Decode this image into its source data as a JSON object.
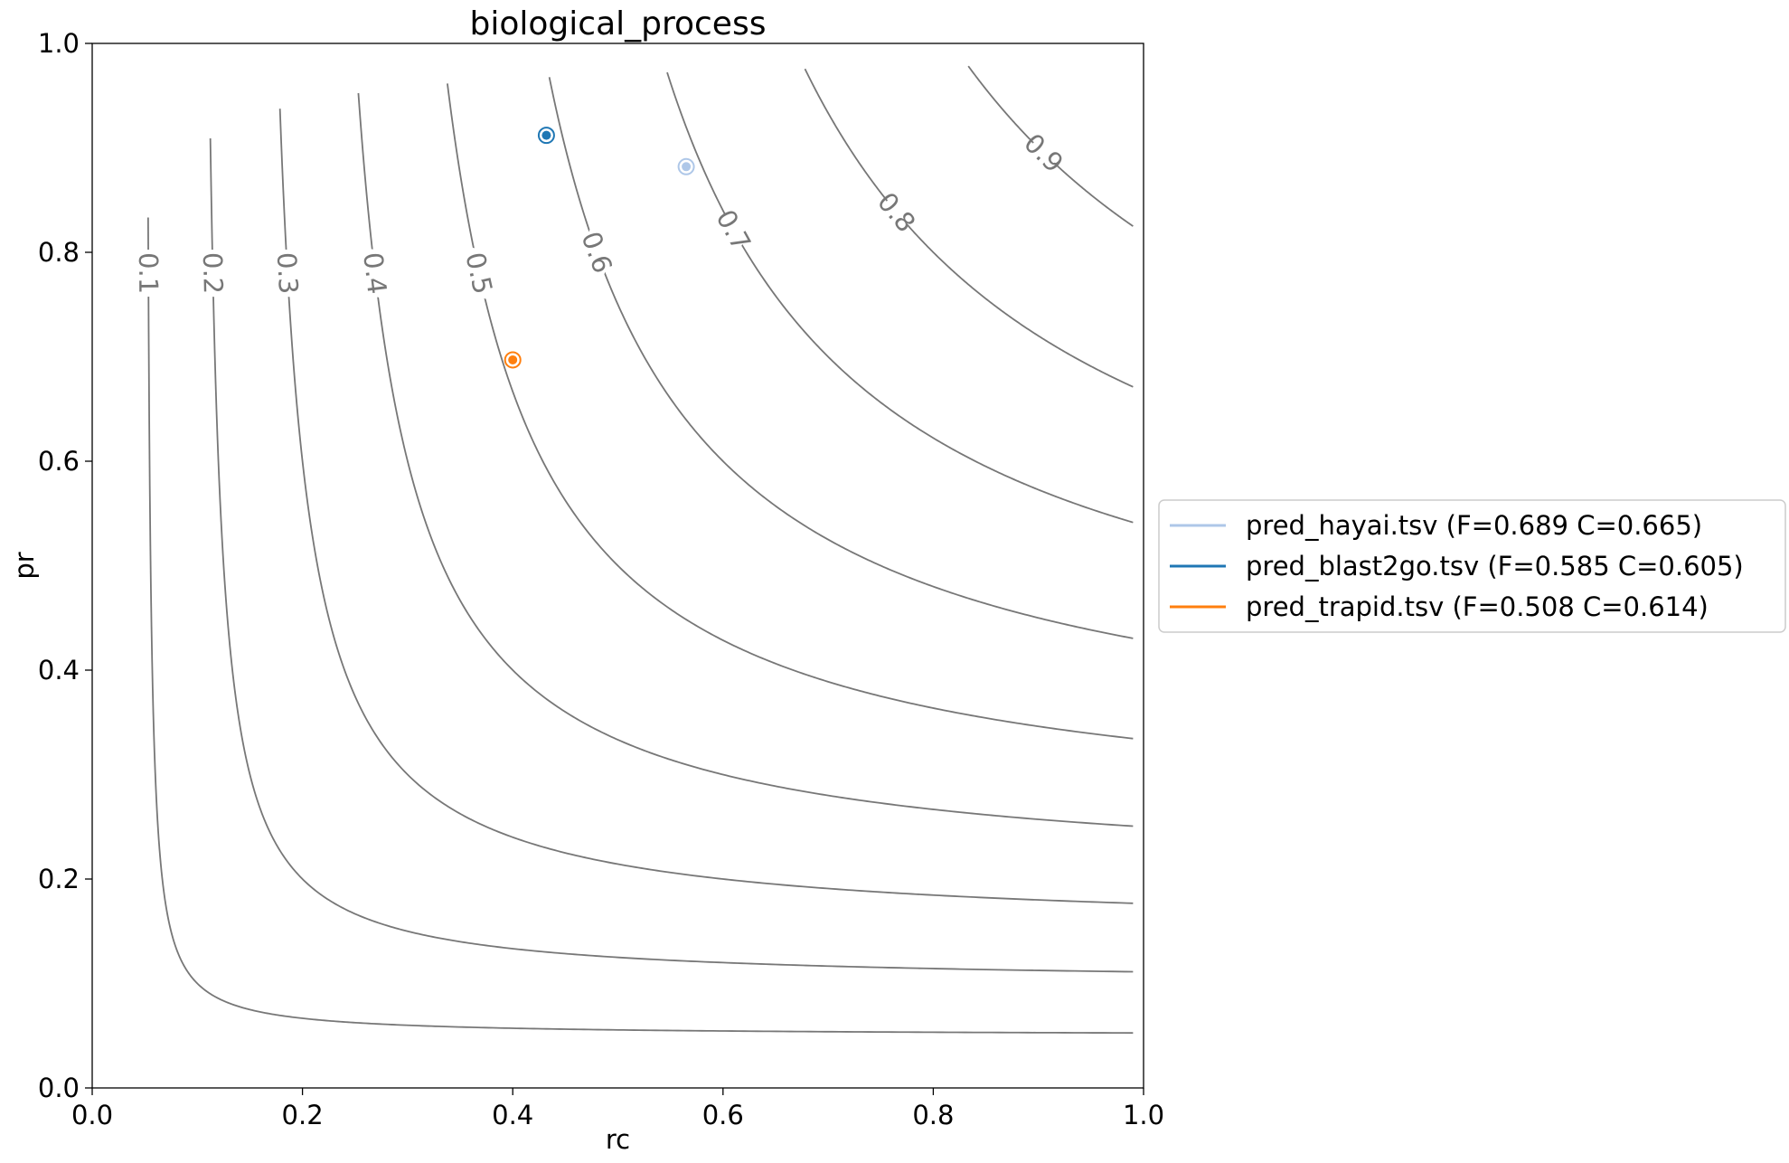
{
  "chart_data": {
    "type": "scatter",
    "title": "biological_process",
    "xlabel": "rc",
    "ylabel": "pr",
    "xlim": [
      0.0,
      1.0
    ],
    "ylim": [
      0.0,
      1.0
    ],
    "x_ticks": [
      "0.0",
      "0.2",
      "0.4",
      "0.6",
      "0.8",
      "1.0"
    ],
    "y_ticks": [
      "0.0",
      "0.2",
      "0.4",
      "0.6",
      "0.8",
      "1.0"
    ],
    "grid": false,
    "legend_position": "center-right, outside plot",
    "iso_f_contours": {
      "color": "#777777",
      "levels": [
        0.1,
        0.2,
        0.3,
        0.4,
        0.5,
        0.6,
        0.7,
        0.8,
        0.9
      ],
      "labels": [
        "0.1",
        "0.2",
        "0.3",
        "0.4",
        "0.5",
        "0.6",
        "0.7",
        "0.8",
        "0.9"
      ]
    },
    "series": [
      {
        "name": "pred_hayai.tsv (F=0.689 C=0.665)",
        "color": "#aec7e8",
        "x": 0.565,
        "y": 0.882
      },
      {
        "name": "pred_blast2go.tsv (F=0.585 C=0.605)",
        "color": "#1f77b4",
        "x": 0.432,
        "y": 0.912
      },
      {
        "name": "pred_trapid.tsv (F=0.508 C=0.614)",
        "color": "#ff7f0e",
        "x": 0.4,
        "y": 0.697
      }
    ]
  }
}
